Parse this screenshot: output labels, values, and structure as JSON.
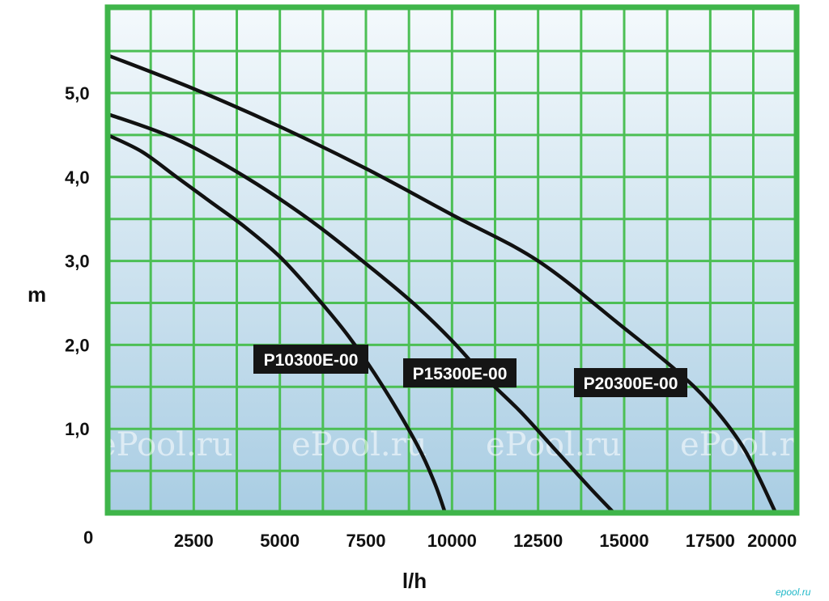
{
  "chart_data": {
    "type": "line",
    "xlabel": "l/h",
    "ylabel": "m",
    "origin_label": "0",
    "xlim": [
      0,
      20000
    ],
    "ylim": [
      0,
      5.0
    ],
    "x_ticks": [
      2500,
      5000,
      7500,
      10000,
      12500,
      15000,
      17500,
      20000
    ],
    "x_tick_labels": [
      "2500",
      "5000",
      "7500",
      "10000",
      "12500",
      "15000",
      "17500",
      "20000"
    ],
    "y_ticks": [
      1,
      2,
      3,
      4,
      5
    ],
    "y_tick_labels": [
      "1,0",
      "2,0",
      "3,0",
      "4,0",
      "5,0"
    ],
    "grid": true,
    "legend": "none (labels placed on curves)",
    "series": [
      {
        "name": "P10300E-00",
        "x": [
          0,
          1000,
          2000,
          3000,
          4000,
          5000,
          6000,
          7000,
          8000,
          9000,
          9500,
          9800
        ],
        "y": [
          4.5,
          4.3,
          4.0,
          3.7,
          3.4,
          3.05,
          2.6,
          2.1,
          1.5,
          0.8,
          0.35,
          0.0
        ]
      },
      {
        "name": "P15300E-00",
        "x": [
          0,
          2000,
          4000,
          6000,
          8000,
          9000,
          10000,
          11000,
          12000,
          13000,
          14000,
          14700
        ],
        "y": [
          4.75,
          4.45,
          4.0,
          3.45,
          2.8,
          2.45,
          2.05,
          1.6,
          1.2,
          0.75,
          0.3,
          0.0
        ]
      },
      {
        "name": "P20300E-00",
        "x": [
          0,
          2500,
          5000,
          7500,
          10000,
          12500,
          15000,
          16500,
          17500,
          18500,
          19400
        ],
        "y": [
          5.45,
          5.05,
          4.6,
          4.1,
          3.55,
          3.0,
          2.2,
          1.7,
          1.3,
          0.75,
          0.0
        ]
      }
    ],
    "series_label_colors": {
      "background": "#151515",
      "text": "#ffffff"
    }
  },
  "watermarks": [
    "ePool.ru",
    "ePool.ru",
    "ePool.ru",
    "ePool.ru",
    "ePool.ru"
  ],
  "corner_watermark": "epool.ru",
  "colors": {
    "frame": "#3fb54a",
    "grid": "#4cbf55",
    "bg_top": "#f4f9fc",
    "bg_bottom": "#a9cde3",
    "curve": "#111111"
  }
}
